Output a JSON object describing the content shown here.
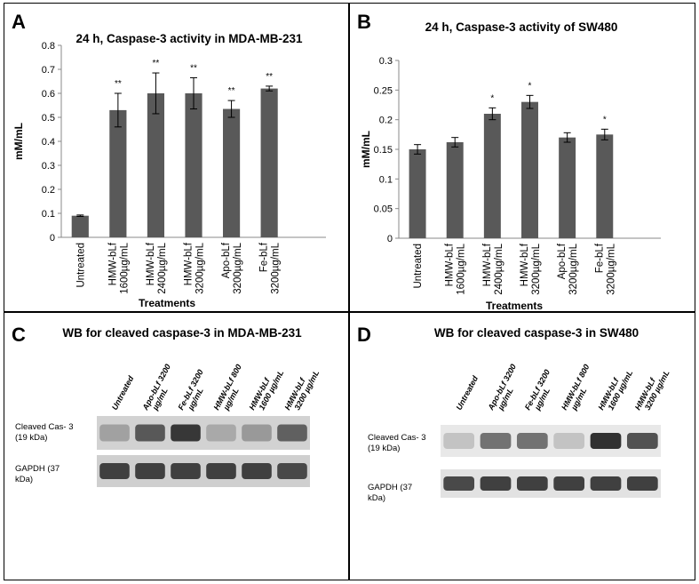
{
  "chart_data": [
    {
      "type": "bar",
      "panel_letter": "A",
      "title": "24 h, Caspase-3 activity in MDA-MB-231",
      "xlabel": "Treatments",
      "ylabel": "mM/mL",
      "ylim": [
        0,
        0.8
      ],
      "yticks": [
        "0",
        "0.1",
        "0.2",
        "0.3",
        "0.4",
        "0.5",
        "0.6",
        "0.7",
        "0.8"
      ],
      "categories": [
        [
          "Untreated"
        ],
        [
          "HMW-bLf",
          "1600µg/mL"
        ],
        [
          "HMW-bLf",
          "2400µg/mL"
        ],
        [
          "HMW-bLf",
          "3200µg/mL"
        ],
        [
          "Apo-bLf",
          "3200µg/mL"
        ],
        [
          "Fe-bLf",
          "3200µg/mL"
        ]
      ],
      "values": [
        0.09,
        0.53,
        0.6,
        0.6,
        0.535,
        0.62
      ],
      "errors": [
        0.003,
        0.07,
        0.085,
        0.065,
        0.035,
        0.01
      ],
      "significance": [
        "",
        "**",
        "**",
        "**",
        "**",
        "**"
      ],
      "bar_color": "#595959",
      "grid": false
    },
    {
      "type": "bar",
      "panel_letter": "B",
      "title": "24 h, Caspase-3 activity of SW480",
      "xlabel": "Treatments",
      "ylabel": "mM/mL",
      "ylim": [
        0,
        0.3
      ],
      "yticks": [
        "0",
        "0.05",
        "0.1",
        "0.15",
        "0.2",
        "0.25",
        "0.3"
      ],
      "categories": [
        [
          "Untreated"
        ],
        [
          "HMW-bLf",
          "1600µg/mL"
        ],
        [
          "HMW-bLf",
          "2400µg/mL"
        ],
        [
          "HMW-bLf",
          "3200µg/mL"
        ],
        [
          "Apo-bLf",
          "3200µg/mL"
        ],
        [
          "Fe-bLf",
          "3200µg/mL"
        ]
      ],
      "values": [
        0.15,
        0.162,
        0.21,
        0.23,
        0.17,
        0.175
      ],
      "errors": [
        0.008,
        0.008,
        0.01,
        0.011,
        0.008,
        0.009
      ],
      "significance": [
        "",
        "",
        "*",
        "*",
        "",
        "*"
      ],
      "bar_color": "#595959",
      "grid": false
    }
  ],
  "blots": [
    {
      "panel_letter": "C",
      "title": "WB for cleaved caspase-3 in MDA-MB-231",
      "lanes": [
        [
          "Untreated"
        ],
        [
          "Apo-bLf 3200",
          "µg/mL"
        ],
        [
          "Fe-bLf 3200",
          "µg/mL"
        ],
        [
          "HMW-bLf 800",
          "µg/mL"
        ],
        [
          "HMW-bLf",
          "1600 µg/mL"
        ],
        [
          "HMW-bLf",
          "3200 µg/mL"
        ]
      ],
      "rows": [
        {
          "label": [
            "Cleaved Cas- 3",
            "(19 kDa)"
          ],
          "intensity": [
            0.25,
            0.7,
            0.9,
            0.2,
            0.3,
            0.65
          ]
        },
        {
          "label": [
            "GAPDH (37",
            "kDa)"
          ],
          "intensity": [
            0.85,
            0.85,
            0.85,
            0.85,
            0.85,
            0.8
          ]
        }
      ]
    },
    {
      "panel_letter": "D",
      "title": "WB for cleaved caspase-3 in SW480",
      "lanes": [
        [
          "Untreated"
        ],
        [
          "Apo-bLf 3200",
          "µg/mL"
        ],
        [
          "Fe-bLf 3200",
          "µg/mL"
        ],
        [
          "HMW-bLf 800",
          "µg/mL"
        ],
        [
          "HMW-bLf",
          "1600 µg/mL"
        ],
        [
          "HMW-bLf",
          "3200 µg/mL"
        ]
      ],
      "rows": [
        {
          "label": [
            "Cleaved Cas- 3",
            "(19 kDa)"
          ],
          "intensity": [
            0.05,
            0.55,
            0.55,
            0.05,
            0.95,
            0.75
          ]
        },
        {
          "label": [
            "GAPDH (37",
            "kDa)"
          ],
          "intensity": [
            0.8,
            0.85,
            0.85,
            0.85,
            0.85,
            0.85
          ]
        }
      ]
    }
  ]
}
